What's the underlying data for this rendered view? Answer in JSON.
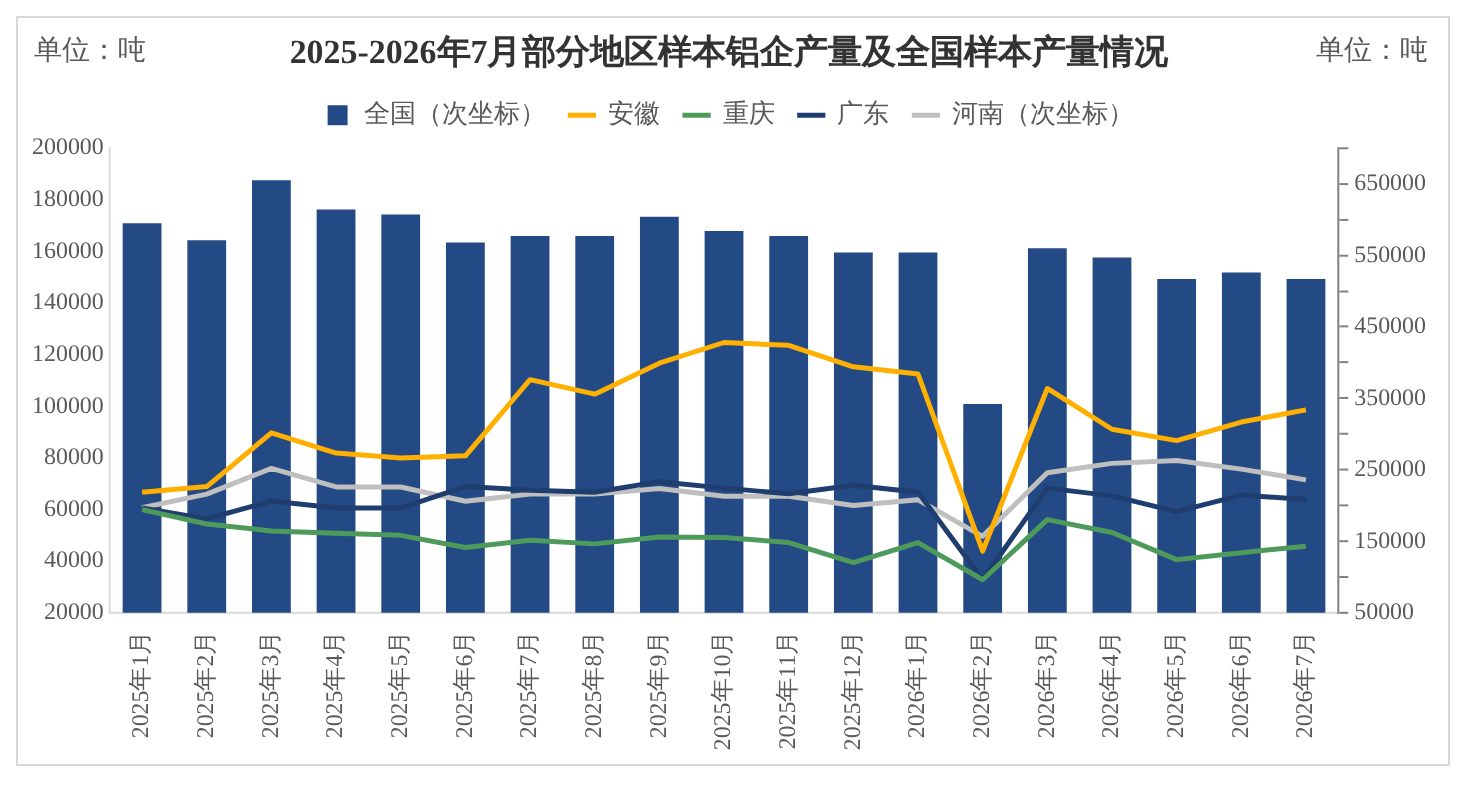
{
  "chart_data": {
    "type": "bar",
    "title": "2025-2026年7月部分地区样本铝企产量及全国样本产量情况",
    "annotations": [
      "单位：吨",
      "单位：吨"
    ],
    "categories": [
      "2025年1月",
      "2025年2月",
      "2025年3月",
      "2025年4月",
      "2025年5月",
      "2025年6月",
      "2025年7月",
      "2025年8月",
      "2025年9月",
      "2025年10月",
      "2025年11月",
      "2025年12月",
      "2026年1月",
      "2026年2月",
      "2026年3月",
      "2026年4月",
      "2026年5月",
      "2026年6月",
      "2026年7月"
    ],
    "series": [
      {
        "name": "全国（次坐标）",
        "axis": "y2",
        "color": "#234a85",
        "values": [
          595000,
          571000,
          655000,
          614000,
          607000,
          568000,
          577000,
          577000,
          604000,
          584000,
          577000,
          554000,
          554000,
          342000,
          560000,
          547000,
          517000,
          526000,
          517000
        ]
      },
      {
        "name": "安徽",
        "type": "line",
        "color": "#ffb000",
        "values": [
          66700,
          68900,
          89700,
          81900,
          80000,
          80800,
          110300,
          104700,
          116700,
          124700,
          123600,
          115300,
          112500,
          43900,
          106900,
          91100,
          86700,
          93900,
          98600
        ]
      },
      {
        "name": "重庆",
        "type": "line",
        "color": "#4e9a5b",
        "values": [
          60000,
          54400,
          51700,
          50800,
          50000,
          45300,
          48100,
          46700,
          49400,
          49200,
          47200,
          39400,
          47200,
          32800,
          56100,
          51100,
          40600,
          43300,
          45800
        ]
      },
      {
        "name": "广东",
        "type": "line",
        "color": "#1f3d6e",
        "values": [
          60600,
          56400,
          63300,
          60600,
          60600,
          68900,
          67500,
          66700,
          70800,
          68300,
          66100,
          69400,
          66700,
          32800,
          68300,
          65300,
          59200,
          65600,
          63900
        ]
      },
      {
        "name": "河南（次坐标）",
        "type": "line",
        "axis": "y2",
        "color": "#bfbfbf",
        "values": [
          197000,
          216000,
          252000,
          226000,
          226000,
          206000,
          216000,
          216000,
          224000,
          213000,
          213000,
          200000,
          208000,
          157000,
          246000,
          259000,
          263000,
          251000,
          236000
        ]
      }
    ],
    "ylim": [
      20000,
      200000
    ],
    "yticks": [
      20000,
      40000,
      60000,
      80000,
      100000,
      120000,
      140000,
      160000,
      180000,
      200000
    ],
    "y2lim": [
      50000,
      700000
    ],
    "y2ticks": [
      50000,
      {
        "value": 100000,
        "label": null
      },
      150000,
      {
        "value": 200000,
        "label": null
      },
      250000,
      {
        "value": 300000,
        "label": null
      },
      350000,
      {
        "value": 400000,
        "label": null
      },
      450000,
      {
        "value": 500000,
        "label": null
      },
      550000,
      {
        "value": 600000,
        "label": null
      },
      650000,
      {
        "value": 700000,
        "label": null
      }
    ],
    "legend": "top",
    "grid": false,
    "marker": "none",
    "line_style": "solid"
  }
}
